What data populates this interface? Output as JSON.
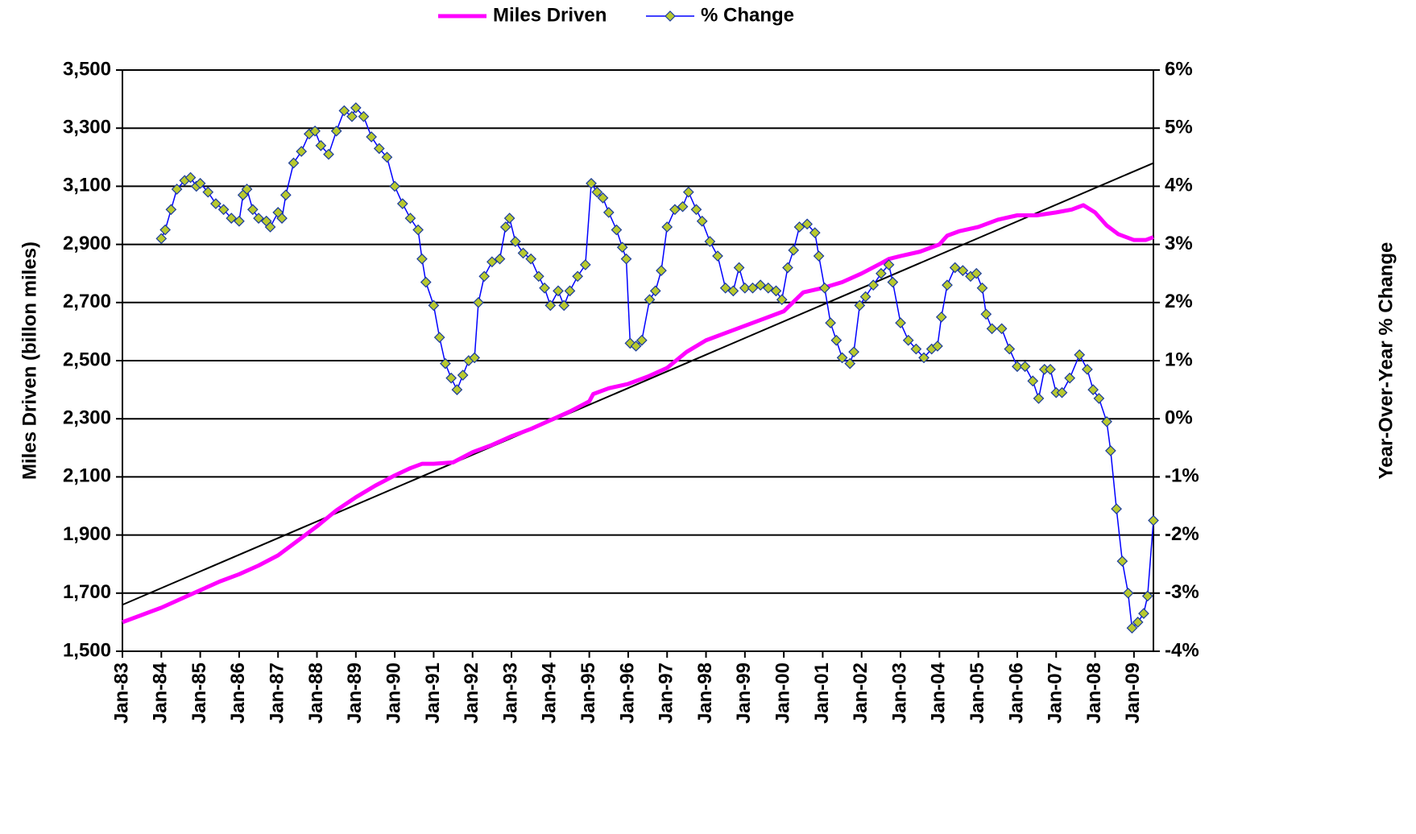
{
  "chart_data": {
    "type": "line",
    "ylabel": "Miles Driven (billon miles)",
    "y2label": "Year-Over-Year % Change",
    "xlim": [
      1983,
      2009.5
    ],
    "xticks": [
      {
        "value": 1983,
        "label": "Jan-83"
      },
      {
        "value": 1984,
        "label": "Jan-84"
      },
      {
        "value": 1985,
        "label": "Jan-85"
      },
      {
        "value": 1986,
        "label": "Jan-86"
      },
      {
        "value": 1987,
        "label": "Jan-87"
      },
      {
        "value": 1988,
        "label": "Jan-88"
      },
      {
        "value": 1989,
        "label": "Jan-89"
      },
      {
        "value": 1990,
        "label": "Jan-90"
      },
      {
        "value": 1991,
        "label": "Jan-91"
      },
      {
        "value": 1992,
        "label": "Jan-92"
      },
      {
        "value": 1993,
        "label": "Jan-93"
      },
      {
        "value": 1994,
        "label": "Jan-94"
      },
      {
        "value": 1995,
        "label": "Jan-95"
      },
      {
        "value": 1996,
        "label": "Jan-96"
      },
      {
        "value": 1997,
        "label": "Jan-97"
      },
      {
        "value": 1998,
        "label": "Jan-98"
      },
      {
        "value": 1999,
        "label": "Jan-99"
      },
      {
        "value": 2000,
        "label": "Jan-00"
      },
      {
        "value": 2001,
        "label": "Jan-01"
      },
      {
        "value": 2002,
        "label": "Jan-02"
      },
      {
        "value": 2003,
        "label": "Jan-03"
      },
      {
        "value": 2004,
        "label": "Jan-04"
      },
      {
        "value": 2005,
        "label": "Jan-05"
      },
      {
        "value": 2006,
        "label": "Jan-06"
      },
      {
        "value": 2007,
        "label": "Jan-07"
      },
      {
        "value": 2008,
        "label": "Jan-08"
      },
      {
        "value": 2009,
        "label": "Jan-09"
      }
    ],
    "ylim": [
      1500,
      3500
    ],
    "yticks": [
      {
        "value": 1500,
        "label": "1,500"
      },
      {
        "value": 1700,
        "label": "1,700"
      },
      {
        "value": 1900,
        "label": "1,900"
      },
      {
        "value": 2100,
        "label": "2,100"
      },
      {
        "value": 2300,
        "label": "2,300"
      },
      {
        "value": 2500,
        "label": "2,500"
      },
      {
        "value": 2700,
        "label": "2,700"
      },
      {
        "value": 2900,
        "label": "2,900"
      },
      {
        "value": 3100,
        "label": "3,100"
      },
      {
        "value": 3300,
        "label": "3,300"
      },
      {
        "value": 3500,
        "label": "3,500"
      }
    ],
    "y2lim": [
      -4,
      6
    ],
    "y2ticks": [
      {
        "value": -4,
        "label": "-4%"
      },
      {
        "value": -3,
        "label": "-3%"
      },
      {
        "value": -2,
        "label": "-2%"
      },
      {
        "value": -1,
        "label": "-1%"
      },
      {
        "value": 0,
        "label": "0%"
      },
      {
        "value": 1,
        "label": "1%"
      },
      {
        "value": 2,
        "label": "2%"
      },
      {
        "value": 3,
        "label": "3%"
      },
      {
        "value": 4,
        "label": "4%"
      },
      {
        "value": 5,
        "label": "5%"
      },
      {
        "value": 6,
        "label": "6%"
      }
    ],
    "grid": true,
    "legend": "top",
    "series": [
      {
        "name": "Miles Driven",
        "color": "#ff00ff",
        "axis": "y",
        "x": [
          1983,
          1983.5,
          1984,
          1984.5,
          1985,
          1985.5,
          1986,
          1986.5,
          1987,
          1987.5,
          1988,
          1988.5,
          1989,
          1989.5,
          1990,
          1990.4,
          1990.7,
          1991,
          1991.5,
          1992,
          1992.5,
          1993,
          1993.5,
          1994,
          1994.5,
          1995,
          1995.1,
          1995.5,
          1996,
          1996.5,
          1997,
          1997.5,
          1998,
          1998.5,
          1999,
          1999.5,
          2000,
          2000.5,
          2001,
          2001.5,
          2002,
          2002.5,
          2002.7,
          2003,
          2003.5,
          2004,
          2004.2,
          2004.5,
          2005,
          2005.5,
          2006,
          2006.5,
          2007,
          2007.4,
          2007.7,
          2008,
          2008.3,
          2008.6,
          2009,
          2009.3,
          2009.5
        ],
        "values": [
          1600,
          1625,
          1650,
          1680,
          1710,
          1740,
          1765,
          1795,
          1830,
          1880,
          1930,
          1985,
          2030,
          2070,
          2105,
          2130,
          2145,
          2145,
          2150,
          2185,
          2210,
          2240,
          2265,
          2295,
          2325,
          2360,
          2385,
          2405,
          2420,
          2445,
          2475,
          2530,
          2570,
          2595,
          2620,
          2645,
          2670,
          2735,
          2750,
          2770,
          2800,
          2835,
          2850,
          2860,
          2875,
          2900,
          2930,
          2945,
          2960,
          2985,
          3000,
          3000,
          3010,
          3020,
          3035,
          3010,
          2965,
          2935,
          2915,
          2915,
          2925
        ]
      },
      {
        "name": "% Change",
        "color": "#0000ff",
        "marker_color": "#b8c92e",
        "axis": "y2",
        "x": [
          1984.0,
          1984.1,
          1984.25,
          1984.4,
          1984.6,
          1984.75,
          1984.9,
          1985.0,
          1985.2,
          1985.4,
          1985.6,
          1985.8,
          1986.0,
          1986.1,
          1986.2,
          1986.35,
          1986.5,
          1986.7,
          1986.8,
          1987.0,
          1987.1,
          1987.2,
          1987.4,
          1987.6,
          1987.8,
          1987.95,
          1988.1,
          1988.3,
          1988.5,
          1988.7,
          1988.9,
          1989.0,
          1989.2,
          1989.4,
          1989.6,
          1989.8,
          1990.0,
          1990.2,
          1990.4,
          1990.6,
          1990.7,
          1990.8,
          1991.0,
          1991.15,
          1991.3,
          1991.45,
          1991.6,
          1991.75,
          1991.9,
          1992.05,
          1992.15,
          1992.3,
          1992.5,
          1992.7,
          1992.85,
          1992.95,
          1993.1,
          1993.3,
          1993.5,
          1993.7,
          1993.85,
          1994.0,
          1994.2,
          1994.35,
          1994.5,
          1994.7,
          1994.9,
          1995.05,
          1995.2,
          1995.35,
          1995.5,
          1995.7,
          1995.85,
          1995.95,
          1996.05,
          1996.2,
          1996.35,
          1996.55,
          1996.7,
          1996.85,
          1997.0,
          1997.2,
          1997.4,
          1997.55,
          1997.75,
          1997.9,
          1998.1,
          1998.3,
          1998.5,
          1998.7,
          1998.85,
          1999.0,
          1999.2,
          1999.4,
          1999.6,
          1999.8,
          1999.95,
          2000.1,
          2000.25,
          2000.4,
          2000.6,
          2000.8,
          2000.9,
          2001.05,
          2001.2,
          2001.35,
          2001.5,
          2001.7,
          2001.8,
          2001.95,
          2002.1,
          2002.3,
          2002.5,
          2002.7,
          2002.8,
          2003.0,
          2003.2,
          2003.4,
          2003.6,
          2003.8,
          2003.95,
          2004.05,
          2004.2,
          2004.4,
          2004.6,
          2004.8,
          2004.95,
          2005.1,
          2005.2,
          2005.35,
          2005.6,
          2005.8,
          2006.0,
          2006.2,
          2006.4,
          2006.55,
          2006.7,
          2006.85,
          2007.0,
          2007.15,
          2007.35,
          2007.6,
          2007.8,
          2007.95,
          2008.1,
          2008.3,
          2008.4,
          2008.55,
          2008.7,
          2008.85,
          2008.95,
          2009.1,
          2009.25,
          2009.35,
          2009.5
        ],
        "values": [
          3.1,
          3.25,
          3.6,
          3.95,
          4.1,
          4.15,
          4.0,
          4.05,
          3.9,
          3.7,
          3.6,
          3.45,
          3.4,
          3.85,
          3.95,
          3.6,
          3.45,
          3.4,
          3.3,
          3.55,
          3.45,
          3.85,
          4.4,
          4.6,
          4.9,
          4.95,
          4.7,
          4.55,
          4.95,
          5.3,
          5.2,
          5.35,
          5.2,
          4.85,
          4.65,
          4.5,
          4.0,
          3.7,
          3.45,
          3.25,
          2.75,
          2.35,
          1.95,
          1.4,
          0.95,
          0.7,
          0.5,
          0.75,
          1.0,
          1.05,
          2.0,
          2.45,
          2.7,
          2.75,
          3.3,
          3.45,
          3.05,
          2.85,
          2.75,
          2.45,
          2.25,
          1.95,
          2.2,
          1.95,
          2.2,
          2.45,
          2.65,
          4.05,
          3.9,
          3.8,
          3.55,
          3.25,
          2.95,
          2.75,
          1.3,
          1.25,
          1.35,
          2.05,
          2.2,
          2.55,
          3.3,
          3.6,
          3.65,
          3.9,
          3.6,
          3.4,
          3.05,
          2.8,
          2.25,
          2.2,
          2.6,
          2.25,
          2.25,
          2.3,
          2.25,
          2.2,
          2.05,
          2.6,
          2.9,
          3.3,
          3.35,
          3.2,
          2.8,
          2.25,
          1.65,
          1.35,
          1.05,
          0.95,
          1.15,
          1.95,
          2.1,
          2.3,
          2.5,
          2.65,
          2.35,
          1.65,
          1.35,
          1.2,
          1.05,
          1.2,
          1.25,
          1.75,
          2.3,
          2.6,
          2.55,
          2.45,
          2.5,
          2.25,
          1.8,
          1.55,
          1.55,
          1.2,
          0.9,
          0.9,
          0.65,
          0.35,
          0.85,
          0.85,
          0.45,
          0.45,
          0.7,
          1.1,
          0.85,
          0.5,
          0.35,
          -0.05,
          -0.55,
          -1.55,
          -2.45,
          -3.0,
          -3.6,
          -3.5,
          -3.35,
          -3.05,
          -1.75
        ]
      }
    ],
    "trendline": {
      "color": "#000000",
      "x": [
        1983,
        2009.5
      ],
      "values": [
        1660,
        3180
      ]
    }
  }
}
